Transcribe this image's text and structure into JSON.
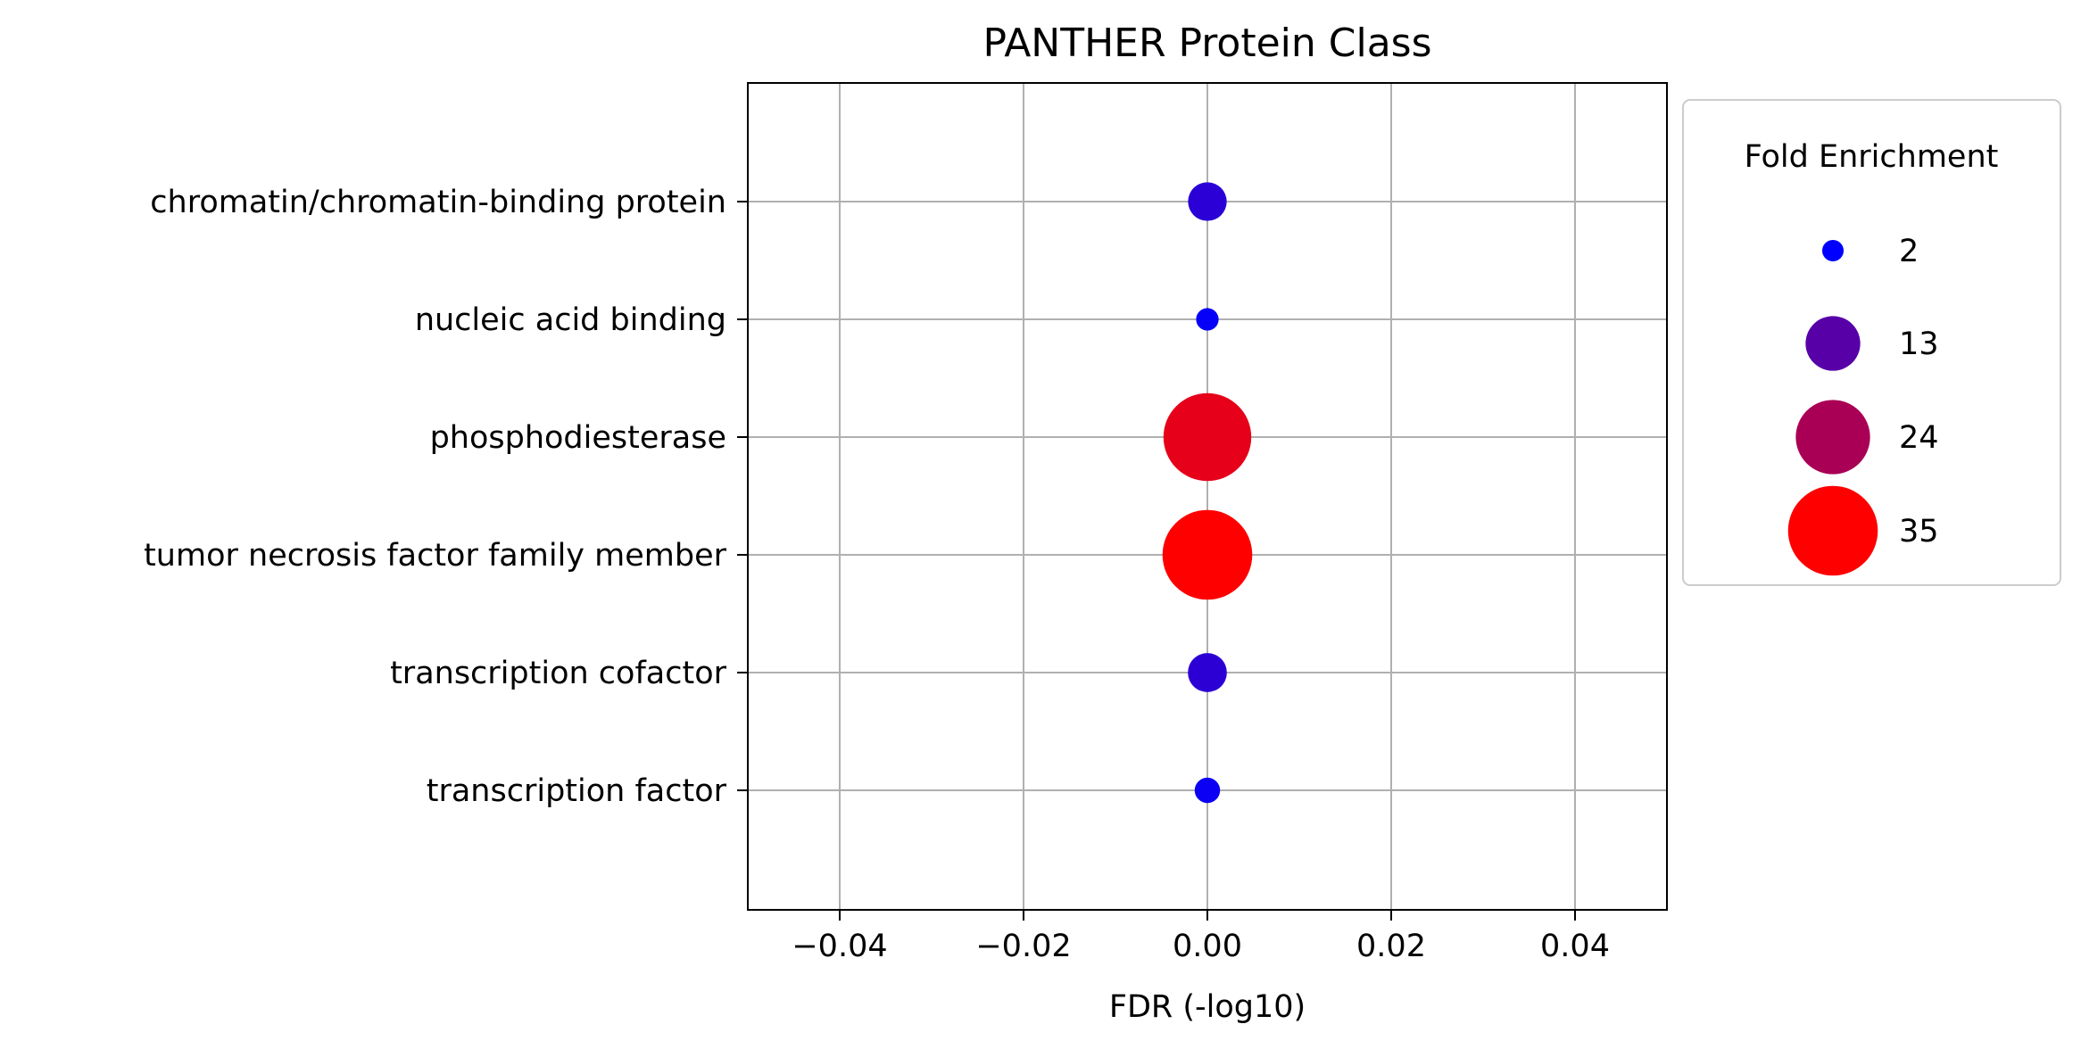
{
  "chart_data": {
    "type": "scatter",
    "title": "PANTHER Protein Class",
    "xlabel": "FDR (-log10)",
    "ylabel": "",
    "xlim": [
      -0.05,
      0.05
    ],
    "xticks": [
      -0.04,
      -0.02,
      0.0,
      0.02,
      0.04
    ],
    "xtick_labels": [
      "−0.04",
      "−0.02",
      "0.00",
      "0.02",
      "0.04"
    ],
    "grid": true,
    "categories": [
      "chromatin/chromatin-binding protein",
      "nucleic acid binding",
      "phosphodiesterase",
      "tumor necrosis factor family member",
      "transcription cofactor",
      "transcription factor"
    ],
    "points": [
      {
        "category": "chromatin/chromatin-binding protein",
        "x": 0.0,
        "fold_enrichment": 6.5,
        "color": "#2b00d6"
      },
      {
        "category": "nucleic acid binding",
        "x": 0.0,
        "fold_enrichment": 2.2,
        "color": "#0600f9"
      },
      {
        "category": "phosphodiesterase",
        "x": 0.0,
        "fold_enrichment": 33.5,
        "color": "#e6001a"
      },
      {
        "category": "tumor necrosis factor family member",
        "x": 0.0,
        "fold_enrichment": 35,
        "color": "#ff0000"
      },
      {
        "category": "transcription cofactor",
        "x": 0.0,
        "fold_enrichment": 6.6,
        "color": "#2c00d5"
      },
      {
        "category": "transcription factor",
        "x": 0.0,
        "fold_enrichment": 2.8,
        "color": "#0b00f4"
      }
    ],
    "legend": {
      "title": "Fold Enrichment",
      "placement": "outside-right",
      "entries": [
        {
          "label": "2",
          "value": 2,
          "color": "#0000ff"
        },
        {
          "label": "13",
          "value": 13,
          "color": "#5700a8"
        },
        {
          "label": "24",
          "value": 24,
          "color": "#a90056"
        },
        {
          "label": "35",
          "value": 35,
          "color": "#ff0000"
        }
      ]
    }
  }
}
